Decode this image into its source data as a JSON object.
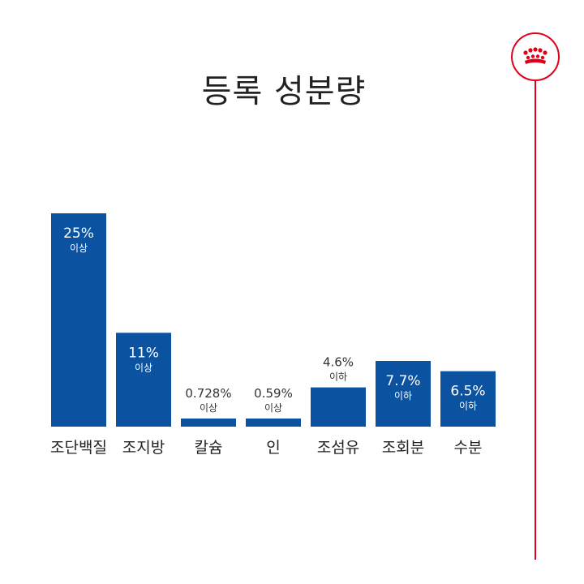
{
  "title": "등록 성분량",
  "logo": {
    "icon": "crown-icon",
    "color": "#e1001a"
  },
  "chart_data": {
    "type": "bar",
    "title": "등록 성분량",
    "categories": [
      "조단백질",
      "조지방",
      "칼슘",
      "인",
      "조섬유",
      "조회분",
      "수분"
    ],
    "values": [
      25,
      11,
      0.728,
      0.59,
      4.6,
      7.7,
      6.5
    ],
    "value_labels": [
      "25%",
      "11%",
      "0.728%",
      "0.59%",
      "4.6%",
      "7.7%",
      "6.5%"
    ],
    "qualifiers": [
      "이상",
      "이상",
      "이상",
      "이상",
      "이하",
      "이하",
      "이하"
    ],
    "ylim": [
      0,
      25
    ],
    "grid": false,
    "bar_color": "#0b53a1"
  }
}
